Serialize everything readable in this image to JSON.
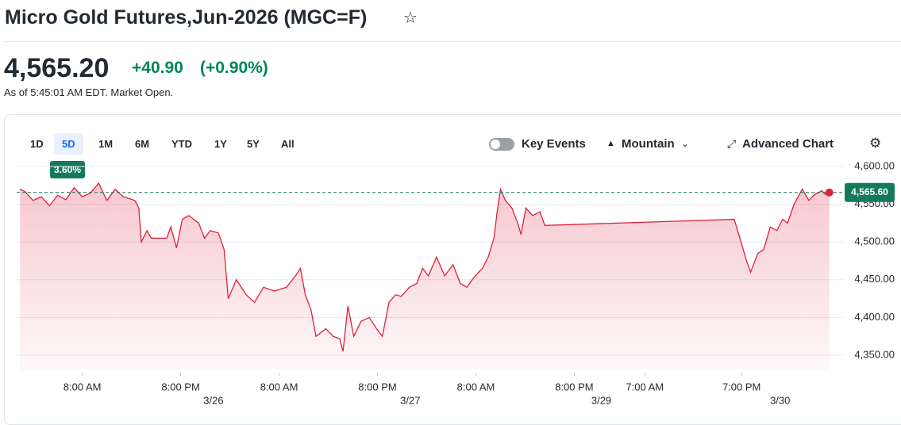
{
  "header": {
    "title": "Micro Gold Futures,Jun-2026 (MGC=F)"
  },
  "quote": {
    "price": "4,565.20",
    "change": "+40.90",
    "change_percent": "(+0.90%)",
    "as_of": "As of 5:45:01 AM EDT. Market Open."
  },
  "toolbar": {
    "ranges": [
      "1D",
      "5D",
      "1M",
      "6M",
      "YTD",
      "1Y",
      "5Y",
      "All"
    ],
    "selected_range_change": "3.60%",
    "key_events": "Key Events",
    "chart_style": "Mountain",
    "advanced": "Advanced Chart"
  },
  "chart_data": {
    "type": "area",
    "x": [
      0.4,
      1,
      2,
      3,
      4,
      5,
      6,
      7,
      8,
      9,
      10,
      11,
      12,
      13,
      14.4,
      14.9,
      15.2,
      15.9,
      16.4,
      18.3,
      18.8,
      19.5,
      20.2,
      21,
      22.2,
      22.9,
      23.6,
      24.6,
      25.3,
      25.8,
      26.8,
      28,
      29,
      30.1,
      31.4,
      32.9,
      34,
      34.6,
      35.2,
      35.9,
      36.5,
      37.7,
      38.6,
      39.4,
      39.8,
      40.4,
      41.1,
      42,
      43,
      43.9,
      44.6,
      45.4,
      46.2,
      46.9,
      47.9,
      48.8,
      49.5,
      50.2,
      51.2,
      52.2,
      53.2,
      54.1,
      54.9,
      55.9,
      56.8,
      57.5,
      58.2,
      58.6,
      59,
      59.6,
      60.4,
      61.1,
      61.5,
      62.1,
      62.9,
      63.8,
      64.4,
      87.5,
      88.2,
      89,
      89.5,
      90.4,
      91.1,
      91.9,
      92.7,
      93.4,
      94,
      94.8,
      95.8,
      96.6,
      97.2,
      98.2,
      98.6,
      99.1
    ],
    "series": [
      {
        "color": "#e0203a",
        "values": [
          4570,
          4567,
          4555,
          4560,
          4548,
          4562,
          4556,
          4572,
          4560,
          4565,
          4578,
          4555,
          4570,
          4560,
          4555,
          4545,
          4500,
          4515,
          4505,
          4505,
          4520,
          4492,
          4530,
          4535,
          4525,
          4505,
          4515,
          4512,
          4490,
          4425,
          4450,
          4430,
          4420,
          4440,
          4435,
          4440,
          4455,
          4465,
          4430,
          4410,
          4375,
          4385,
          4375,
          4372,
          4355,
          4415,
          4375,
          4395,
          4400,
          4385,
          4375,
          4420,
          4430,
          4428,
          4440,
          4445,
          4465,
          4455,
          4480,
          4455,
          4470,
          4445,
          4440,
          4455,
          4465,
          4480,
          4505,
          4540,
          4570,
          4555,
          4545,
          4525,
          4510,
          4545,
          4535,
          4540,
          4522,
          4530,
          4505,
          4475,
          4460,
          4485,
          4490,
          4520,
          4515,
          4530,
          4525,
          4550,
          4570,
          4555,
          4562,
          4568,
          4563,
          4565.6
        ]
      }
    ],
    "last_value": {
      "value": 4565.6,
      "label": "4,565.60"
    },
    "xlim": [
      0,
      100
    ],
    "xticks": [
      {
        "value": 8,
        "label": "8:00 AM"
      },
      {
        "value": 20,
        "label": "8:00 PM"
      },
      {
        "value": 32,
        "label": "8:00 AM"
      },
      {
        "value": 44,
        "label": "8:00 PM"
      },
      {
        "value": 56,
        "label": "8:00 AM"
      },
      {
        "value": 68,
        "label": "8:00 PM"
      },
      {
        "value": 76.6,
        "label": "7:00 AM"
      },
      {
        "value": 88.4,
        "label": "7:00 PM"
      }
    ],
    "date_ticks": [
      {
        "value": 24,
        "label": "3/26"
      },
      {
        "value": 48,
        "label": "3/27"
      },
      {
        "value": 71.3,
        "label": "3/29"
      },
      {
        "value": 93.1,
        "label": "3/30"
      }
    ],
    "ylim": [
      4330,
      4610
    ],
    "yticks": [
      {
        "value": 4350,
        "label": "4,350.00"
      },
      {
        "value": 4400,
        "label": "4,400.00"
      },
      {
        "value": 4450,
        "label": "4,450.00"
      },
      {
        "value": 4500,
        "label": "4,500.00"
      },
      {
        "value": 4550,
        "label": "4,550.00"
      },
      {
        "value": 4600,
        "label": "4,600.00"
      }
    ],
    "grid": true
  }
}
